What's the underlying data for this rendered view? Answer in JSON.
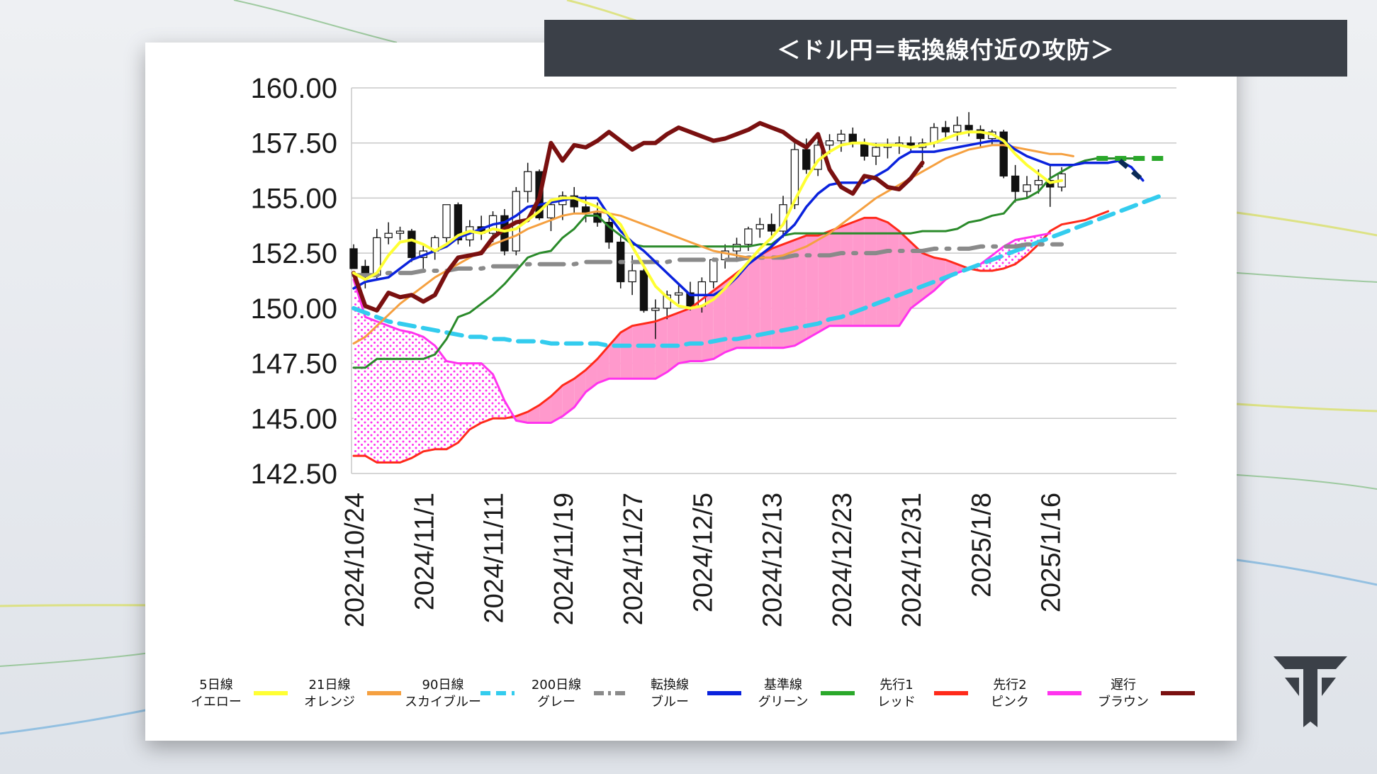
{
  "title": "＜ドル円＝転換線付近の攻防＞",
  "colors": {
    "bar": "#3b4048",
    "five_day": "#ffff33",
    "twenty_one": "#f5a040",
    "ninety": "#33ccee",
    "two_hundred": "#8a8a8a",
    "tenkan": "#0a22dd",
    "kijun": "#2a8a2a",
    "senkou1": "#ff2a1a",
    "senkou2": "#ff33ee",
    "chikou": "#7a1010",
    "cloud_pink": "#ff99cc",
    "cloud_dots": "#ff33ee"
  },
  "legend": [
    {
      "line1": "5日線",
      "line2": "イエロー",
      "color": "#ffff33",
      "style": "solid"
    },
    {
      "line1": "21日線",
      "line2": "オレンジ",
      "color": "#f5a040",
      "style": "solid"
    },
    {
      "line1": "90日線",
      "line2": "スカイブルー",
      "color": "#33ccee",
      "style": "dash"
    },
    {
      "line1": "200日線",
      "line2": "グレー",
      "color": "#8a8a8a",
      "style": "dashdot"
    },
    {
      "line1": "転換線",
      "line2": "ブルー",
      "color": "#0a22dd",
      "style": "solid"
    },
    {
      "line1": "基準線",
      "line2": "グリーン",
      "color": "#2aa82a",
      "style": "solid"
    },
    {
      "line1": "先行1",
      "line2": "レッド",
      "color": "#ff2a1a",
      "style": "solid"
    },
    {
      "line1": "先行2",
      "line2": "ピンク",
      "color": "#ff33ee",
      "style": "solid"
    },
    {
      "line1": "遅行",
      "line2": "ブラウン",
      "color": "#7a1010",
      "style": "solid"
    }
  ],
  "logo_icon": "t-shield-icon",
  "chart_data": {
    "type": "line",
    "title": "＜ドル円＝転換線付近の攻防＞",
    "xlabel": "",
    "ylabel": "",
    "ylim": [
      142.5,
      160.0
    ],
    "y_ticks": [
      "160.00",
      "157.50",
      "155.00",
      "152.50",
      "150.00",
      "147.50",
      "145.00",
      "142.50"
    ],
    "x_ticks": [
      "2024/10/24",
      "2024/11/1",
      "2024/11/11",
      "2024/11/19",
      "2024/11/27",
      "2024/12/5",
      "2024/12/13",
      "2024/12/23",
      "2024/12/31",
      "2025/1/8",
      "2025/1/16"
    ],
    "x_tick_index": [
      0,
      6,
      12,
      18,
      24,
      30,
      36,
      42,
      48,
      54,
      60
    ],
    "n_slots": 71,
    "candles": [
      [
        152.7,
        152.9,
        151.8,
        151.8
      ],
      [
        151.9,
        152.2,
        150.9,
        151.5
      ],
      [
        151.5,
        153.6,
        151.3,
        153.2
      ],
      [
        153.2,
        153.9,
        152.9,
        153.4
      ],
      [
        153.4,
        153.7,
        153.1,
        153.5
      ],
      [
        153.5,
        153.6,
        152.1,
        152.3
      ],
      [
        152.3,
        152.9,
        151.8,
        152.6
      ],
      [
        152.6,
        153.3,
        152.2,
        153.2
      ],
      [
        153.2,
        154.7,
        153.0,
        154.7
      ],
      [
        154.7,
        154.8,
        152.9,
        153.1
      ],
      [
        153.1,
        154.0,
        152.8,
        153.7
      ],
      [
        153.7,
        154.2,
        153.1,
        153.4
      ],
      [
        153.4,
        154.4,
        153.0,
        154.2
      ],
      [
        154.2,
        154.5,
        152.4,
        152.6
      ],
      [
        152.6,
        155.5,
        152.4,
        155.3
      ],
      [
        155.3,
        156.6,
        154.8,
        156.2
      ],
      [
        156.2,
        156.3,
        154.0,
        154.1
      ],
      [
        154.1,
        154.9,
        153.5,
        154.7
      ],
      [
        154.7,
        155.3,
        154.0,
        155.1
      ],
      [
        155.1,
        155.5,
        154.3,
        154.6
      ],
      [
        154.6,
        155.1,
        153.9,
        154.3
      ],
      [
        154.3,
        154.8,
        153.7,
        153.9
      ],
      [
        153.9,
        154.1,
        152.7,
        153.0
      ],
      [
        153.0,
        153.3,
        150.9,
        151.2
      ],
      [
        151.2,
        152.4,
        150.6,
        151.7
      ],
      [
        151.7,
        151.8,
        149.8,
        149.9
      ],
      [
        149.9,
        150.4,
        148.6,
        150.0
      ],
      [
        150.0,
        150.8,
        149.5,
        150.6
      ],
      [
        150.6,
        151.1,
        150.2,
        150.7
      ],
      [
        150.7,
        151.2,
        149.9,
        150.1
      ],
      [
        150.1,
        151.4,
        149.8,
        151.2
      ],
      [
        151.2,
        152.3,
        150.9,
        152.2
      ],
      [
        152.2,
        152.9,
        151.8,
        152.6
      ],
      [
        152.6,
        153.2,
        152.1,
        152.9
      ],
      [
        152.9,
        153.7,
        152.6,
        153.6
      ],
      [
        153.6,
        154.1,
        153.2,
        153.8
      ],
      [
        153.8,
        154.3,
        153.3,
        153.5
      ],
      [
        153.5,
        155.1,
        153.2,
        154.7
      ],
      [
        154.7,
        157.5,
        154.5,
        157.2
      ],
      [
        157.2,
        157.7,
        156.1,
        156.3
      ],
      [
        156.3,
        157.6,
        156.0,
        157.4
      ],
      [
        157.4,
        157.9,
        157.0,
        157.6
      ],
      [
        157.6,
        158.1,
        157.1,
        157.9
      ],
      [
        157.9,
        158.2,
        157.3,
        157.5
      ],
      [
        157.5,
        157.7,
        156.7,
        156.9
      ],
      [
        156.9,
        157.5,
        156.5,
        157.3
      ],
      [
        157.3,
        157.7,
        156.8,
        157.4
      ],
      [
        157.4,
        157.8,
        157.0,
        157.5
      ],
      [
        157.5,
        157.8,
        157.1,
        157.3
      ],
      [
        157.3,
        157.7,
        156.4,
        157.5
      ],
      [
        157.5,
        158.4,
        157.3,
        158.2
      ],
      [
        158.2,
        158.5,
        157.7,
        158.0
      ],
      [
        158.0,
        158.7,
        157.6,
        158.3
      ],
      [
        158.3,
        158.9,
        157.8,
        158.1
      ],
      [
        158.1,
        158.3,
        157.3,
        157.7
      ],
      [
        157.7,
        158.1,
        157.4,
        158.0
      ],
      [
        158.0,
        158.1,
        155.9,
        156.0
      ],
      [
        156.0,
        156.5,
        154.8,
        155.3
      ],
      [
        155.3,
        156.0,
        155.0,
        155.6
      ],
      [
        155.6,
        156.3,
        155.2,
        155.8
      ],
      [
        155.8,
        156.5,
        154.6,
        155.5
      ],
      [
        155.5,
        156.4,
        155.3,
        156.1
      ]
    ],
    "series": [
      {
        "name": "5日線",
        "values": [
          151.6,
          151.3,
          151.6,
          152.4,
          153.0,
          153.1,
          152.9,
          152.6,
          152.9,
          153.3,
          153.5,
          153.4,
          153.6,
          153.5,
          153.6,
          154.0,
          154.4,
          154.9,
          155.0,
          155.0,
          154.8,
          154.6,
          154.3,
          153.8,
          152.8,
          151.9,
          151.0,
          150.5,
          150.1,
          150.0,
          150.1,
          150.4,
          150.9,
          151.5,
          152.1,
          152.7,
          153.2,
          153.8,
          154.9,
          155.9,
          156.7,
          157.1,
          157.4,
          157.5,
          157.5,
          157.4,
          157.4,
          157.4,
          157.3,
          157.4,
          157.5,
          157.7,
          157.9,
          158.0,
          158.0,
          157.9,
          157.6,
          157.0,
          156.5,
          156.1,
          155.7,
          155.8
        ],
        "color": "#ffff33"
      },
      {
        "name": "21日線",
        "values": [
          148.4,
          148.7,
          149.2,
          149.7,
          150.2,
          150.6,
          151.0,
          151.4,
          151.7,
          152.0,
          152.3,
          152.6,
          152.9,
          153.1,
          153.3,
          153.6,
          153.8,
          154.0,
          154.2,
          154.3,
          154.3,
          154.4,
          154.3,
          154.2,
          154.0,
          153.8,
          153.6,
          153.4,
          153.2,
          153.0,
          152.8,
          152.6,
          152.5,
          152.4,
          152.3,
          152.3,
          152.3,
          152.4,
          152.6,
          152.8,
          153.1,
          153.4,
          153.8,
          154.2,
          154.6,
          155.0,
          155.3,
          155.6,
          155.9,
          156.2,
          156.5,
          156.8,
          157.0,
          157.2,
          157.3,
          157.4,
          157.4,
          157.3,
          157.2,
          157.1,
          157.0,
          157.0,
          156.9
        ],
        "color": "#f5a040"
      },
      {
        "name": "90日線",
        "values": [
          150.0,
          149.8,
          149.6,
          149.4,
          149.3,
          149.2,
          149.1,
          149.0,
          148.9,
          148.8,
          148.7,
          148.7,
          148.6,
          148.6,
          148.5,
          148.5,
          148.5,
          148.4,
          148.4,
          148.4,
          148.4,
          148.4,
          148.3,
          148.3,
          148.3,
          148.3,
          148.3,
          148.3,
          148.3,
          148.4,
          148.4,
          148.5,
          148.6,
          148.6,
          148.7,
          148.8,
          148.9,
          149.0,
          149.1,
          149.2,
          149.3,
          149.5,
          149.6,
          149.8,
          150.0,
          150.2,
          150.4,
          150.6,
          150.8,
          151.0,
          151.2,
          151.4,
          151.6,
          151.8,
          152.0,
          152.2,
          152.4,
          152.6,
          152.8,
          153.0,
          153.2,
          153.4,
          153.6,
          153.8,
          154.0,
          154.2,
          154.4,
          154.6,
          154.8,
          155.0,
          155.2
        ],
        "color": "#33ccee"
      },
      {
        "name": "200日線",
        "values": [
          151.5,
          151.5,
          151.5,
          151.6,
          151.6,
          151.6,
          151.7,
          151.7,
          151.7,
          151.8,
          151.8,
          151.8,
          151.9,
          151.9,
          151.9,
          152.0,
          152.0,
          152.0,
          152.0,
          152.0,
          152.1,
          152.1,
          152.1,
          152.1,
          152.1,
          152.1,
          152.1,
          152.1,
          152.2,
          152.2,
          152.2,
          152.2,
          152.2,
          152.2,
          152.3,
          152.3,
          152.3,
          152.3,
          152.4,
          152.4,
          152.4,
          152.4,
          152.5,
          152.5,
          152.5,
          152.5,
          152.6,
          152.6,
          152.6,
          152.6,
          152.7,
          152.7,
          152.7,
          152.7,
          152.8,
          152.8,
          152.8,
          152.8,
          152.9,
          152.9,
          152.9,
          152.9
        ],
        "color": "#8a8a8a"
      },
      {
        "name": "転換線",
        "values": [
          150.9,
          151.2,
          151.3,
          151.4,
          151.8,
          152.2,
          152.4,
          152.6,
          152.8,
          153.2,
          153.4,
          153.6,
          153.8,
          153.9,
          154.2,
          154.6,
          154.7,
          154.8,
          154.9,
          155.0,
          155.0,
          155.0,
          154.2,
          153.5,
          153.0,
          152.6,
          152.1,
          151.6,
          151.1,
          150.6,
          150.6,
          150.6,
          150.9,
          151.4,
          152.0,
          152.4,
          152.8,
          153.3,
          153.8,
          154.6,
          155.2,
          155.6,
          155.7,
          155.7,
          155.7,
          156.0,
          156.3,
          156.8,
          157.1,
          157.1,
          157.1,
          157.2,
          157.3,
          157.4,
          157.5,
          157.6,
          157.6,
          157.2,
          156.9,
          156.7,
          156.5,
          156.5,
          156.5,
          156.6,
          156.6,
          156.6,
          156.7,
          156.4,
          155.8
        ],
        "color": "#0a22dd"
      },
      {
        "name": "基準線",
        "values": [
          147.3,
          147.3,
          147.7,
          147.7,
          147.7,
          147.7,
          147.7,
          147.9,
          148.6,
          149.6,
          149.8,
          150.2,
          150.6,
          151.1,
          151.7,
          152.3,
          152.5,
          152.6,
          153.2,
          153.6,
          154.2,
          154.2,
          153.7,
          153.3,
          152.9,
          152.8,
          152.8,
          152.8,
          152.8,
          152.8,
          152.8,
          152.8,
          152.8,
          152.8,
          152.8,
          152.9,
          152.9,
          153.3,
          153.4,
          153.4,
          153.4,
          153.4,
          153.4,
          153.4,
          153.4,
          153.4,
          153.4,
          153.4,
          153.4,
          153.5,
          153.5,
          153.5,
          153.6,
          153.9,
          154.0,
          154.2,
          154.3,
          154.9,
          155.0,
          155.3,
          155.9,
          156.2,
          156.5,
          156.7,
          156.8,
          156.8,
          156.8,
          156.8,
          156.8
        ],
        "color": "#2a8a2a"
      },
      {
        "name": "先行1",
        "values": [
          143.3,
          143.3,
          143.0,
          143.0,
          143.0,
          143.2,
          143.5,
          143.6,
          143.6,
          143.9,
          144.5,
          144.8,
          145.0,
          145.0,
          145.1,
          145.3,
          145.6,
          146.0,
          146.5,
          146.8,
          147.2,
          147.7,
          148.3,
          148.9,
          149.2,
          149.3,
          149.4,
          149.6,
          149.8,
          150.0,
          150.4,
          150.8,
          151.2,
          151.6,
          152.0,
          152.4,
          152.7,
          152.9,
          153.1,
          153.3,
          153.3,
          153.5,
          153.7,
          153.9,
          154.1,
          154.1,
          153.9,
          153.5,
          153.0,
          152.5,
          152.3,
          152.2,
          152.0,
          151.8,
          151.7,
          151.7,
          151.8,
          152.0,
          152.4,
          152.9,
          153.5,
          153.8,
          153.9,
          154.0,
          154.2,
          154.4
        ],
        "color": "#ff2a1a"
      },
      {
        "name": "先行2",
        "values": [
          151.3,
          149.6,
          149.4,
          149.2,
          149.0,
          148.9,
          148.7,
          148.3,
          147.6,
          147.5,
          147.5,
          147.5,
          147.0,
          145.8,
          144.9,
          144.8,
          144.8,
          144.8,
          145.1,
          145.5,
          146.2,
          146.6,
          146.8,
          146.8,
          146.8,
          146.8,
          146.8,
          147.1,
          147.5,
          147.6,
          147.6,
          147.7,
          148.0,
          148.2,
          148.2,
          148.2,
          148.2,
          148.2,
          148.3,
          148.6,
          148.9,
          149.2,
          149.2,
          149.2,
          149.2,
          149.2,
          149.2,
          149.2,
          150.0,
          150.4,
          150.8,
          151.3,
          151.6,
          151.8,
          152.0,
          152.4,
          152.8,
          153.1,
          153.2,
          153.3,
          153.4
        ],
        "color": "#ff33ee"
      },
      {
        "name": "遅行",
        "values": [
          151.6,
          150.1,
          149.9,
          150.7,
          150.5,
          150.6,
          150.3,
          150.6,
          151.6,
          152.3,
          152.4,
          152.5,
          153.2,
          153.6,
          153.9,
          154.0,
          155.0,
          157.5,
          156.7,
          157.4,
          157.3,
          157.6,
          158.0,
          157.6,
          157.2,
          157.5,
          157.5,
          157.9,
          158.2,
          158.0,
          157.8,
          157.6,
          157.7,
          157.9,
          158.1,
          158.4,
          158.2,
          158.0,
          157.6,
          157.3,
          157.9,
          156.3,
          155.5,
          155.2,
          156.0,
          155.9,
          155.5,
          155.4,
          155.9,
          156.6
        ],
        "color": "#7a1010"
      }
    ]
  }
}
